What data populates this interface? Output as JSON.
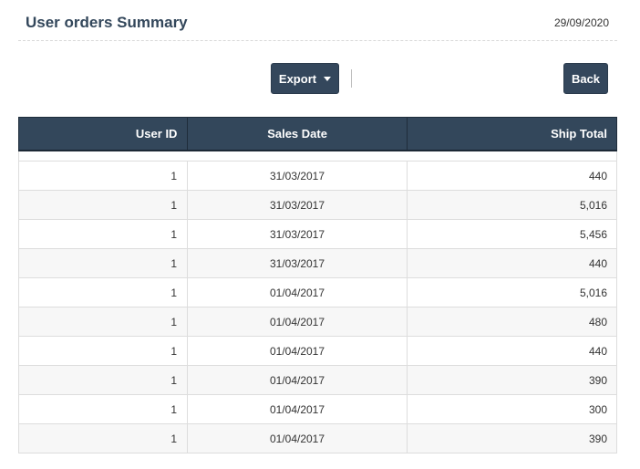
{
  "header": {
    "title": "User orders Summary",
    "date": "29/09/2020"
  },
  "toolbar": {
    "export_label": "Export",
    "back_label": "Back"
  },
  "table": {
    "columns": [
      "User ID",
      "Sales Date",
      "Ship Total"
    ],
    "rows": [
      [
        "1",
        "31/03/2017",
        "440"
      ],
      [
        "1",
        "31/03/2017",
        "5,016"
      ],
      [
        "1",
        "31/03/2017",
        "5,456"
      ],
      [
        "1",
        "31/03/2017",
        "440"
      ],
      [
        "1",
        "01/04/2017",
        "5,016"
      ],
      [
        "1",
        "01/04/2017",
        "480"
      ],
      [
        "1",
        "01/04/2017",
        "440"
      ],
      [
        "1",
        "01/04/2017",
        "390"
      ],
      [
        "1",
        "01/04/2017",
        "300"
      ],
      [
        "1",
        "01/04/2017",
        "390"
      ]
    ]
  },
  "colors": {
    "header_bg": "#33475b",
    "button_bg": "#34475c",
    "title_text": "#33475b"
  },
  "icons": {
    "export_caret": "caret-down-icon"
  }
}
